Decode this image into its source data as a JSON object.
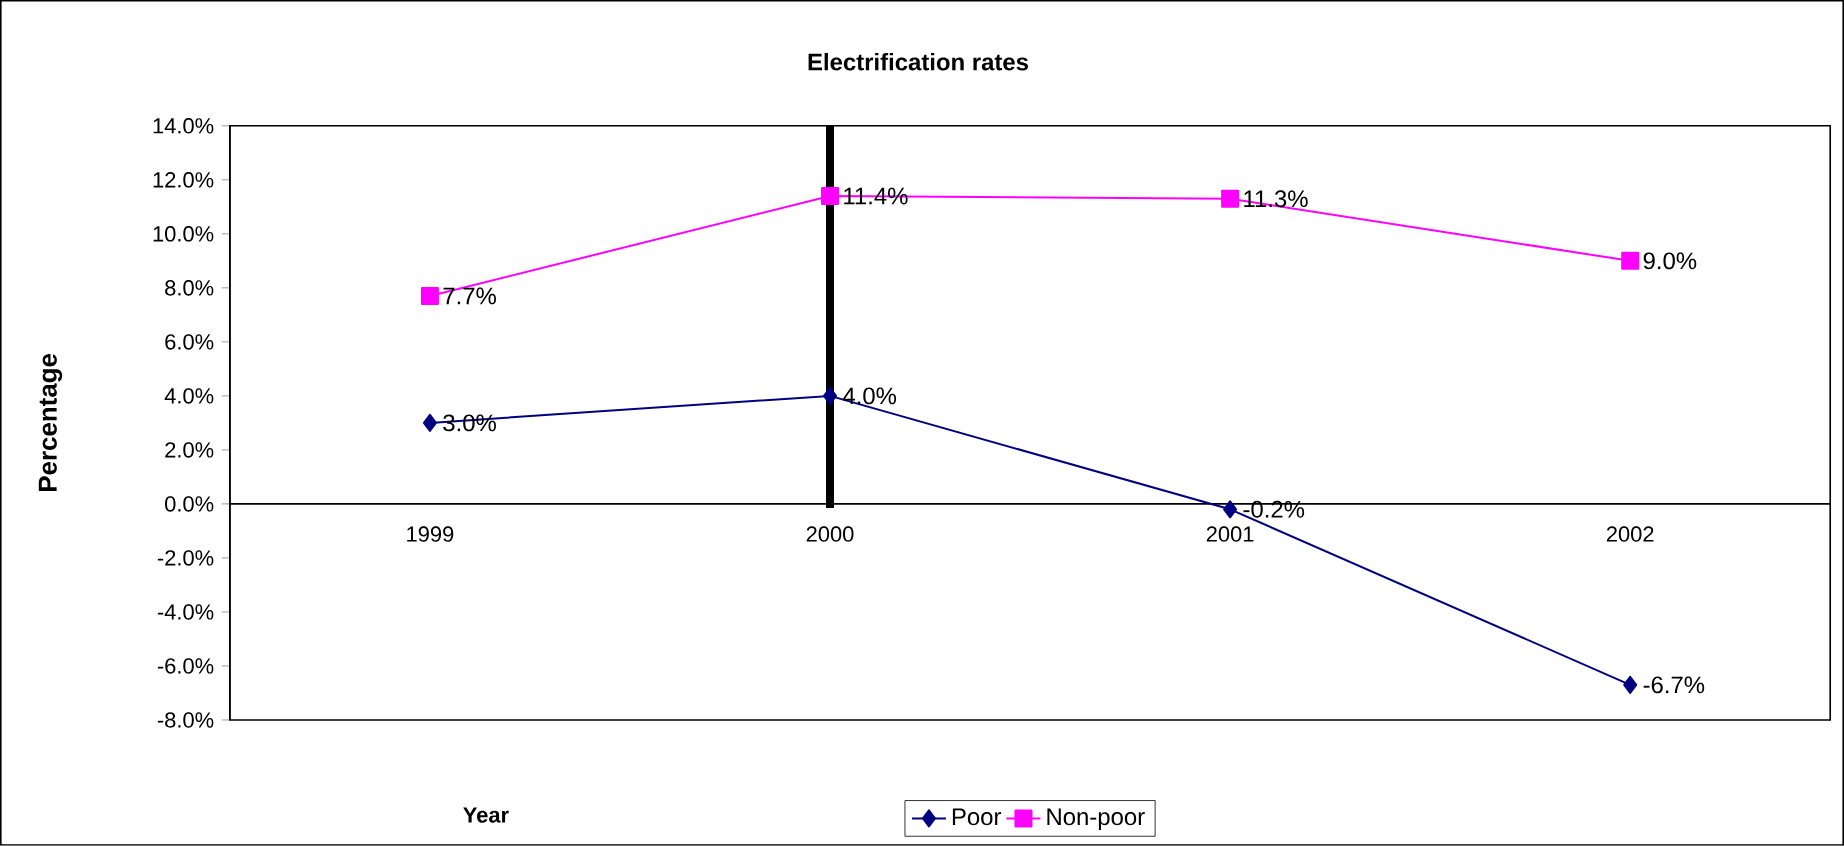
{
  "chart_data": {
    "type": "line",
    "title": "Electrification rates",
    "xlabel": "Year",
    "ylabel": "Percentage",
    "categories": [
      "1999",
      "2000",
      "2001",
      "2002"
    ],
    "series": [
      {
        "name": "Poor",
        "color": "#000080",
        "marker": "diamond",
        "values": [
          3.0,
          4.0,
          -0.2,
          -6.7
        ],
        "value_labels": [
          "3.0%",
          "4.0%",
          "-0.2%",
          "-6.7%"
        ]
      },
      {
        "name": "Non-poor",
        "color": "#ff00ff",
        "marker": "square",
        "values": [
          7.7,
          11.4,
          11.3,
          9.0
        ],
        "value_labels": [
          "7.7%",
          "11.4%",
          "11.3%",
          "9.0%"
        ]
      }
    ],
    "ylim": [
      -8,
      14
    ],
    "yticks": [
      {
        "value": -8,
        "label": "-8.0%"
      },
      {
        "value": -6,
        "label": "-6.0%"
      },
      {
        "value": -4,
        "label": "-4.0%"
      },
      {
        "value": -2,
        "label": "-2.0%"
      },
      {
        "value": 0,
        "label": "0.0%"
      },
      {
        "value": 2,
        "label": "2.0%"
      },
      {
        "value": 4,
        "label": "4.0%"
      },
      {
        "value": 6,
        "label": "6.0%"
      },
      {
        "value": 8,
        "label": "8.0%"
      },
      {
        "value": 10,
        "label": "10.0%"
      },
      {
        "value": 12,
        "label": "12.0%"
      },
      {
        "value": 14,
        "label": "14.0%"
      }
    ],
    "ref_lines": [
      {
        "axis": "x",
        "value": "2000",
        "color": "#000000"
      }
    ],
    "legend": "bottom",
    "grid": false
  }
}
